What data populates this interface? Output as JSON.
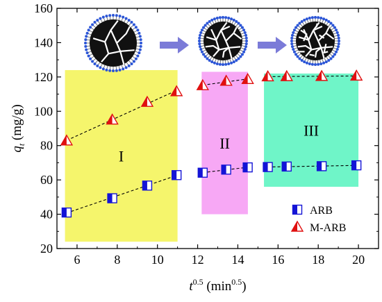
{
  "chart_data": {
    "type": "scatter",
    "title": "",
    "xlabel": {
      "base": "t",
      "sup": "0.5",
      "unit_open": " (min",
      "unit_sup": "0.5",
      "unit_close": ")"
    },
    "ylabel": {
      "base": "q",
      "sub": "t",
      "unit": " (mg/g)"
    },
    "xlim": [
      5,
      21
    ],
    "ylim": [
      20,
      160
    ],
    "xticks": [
      6,
      8,
      10,
      12,
      14,
      16,
      18,
      20
    ],
    "yticks": [
      20,
      40,
      60,
      80,
      100,
      120,
      140,
      160
    ],
    "grid": false,
    "legend_position": "bottom-right",
    "regions": [
      {
        "label": "I",
        "x_range": [
          5.4,
          11.0
        ],
        "y_range": [
          24,
          124
        ],
        "color": "#f5f56c"
      },
      {
        "label": "II",
        "x_range": [
          12.2,
          14.5
        ],
        "y_range": [
          40,
          123
        ],
        "color": "#f7a8f5"
      },
      {
        "label": "III",
        "x_range": [
          15.3,
          20.0
        ],
        "y_range": [
          56,
          122
        ],
        "color": "#6ff5c8"
      }
    ],
    "series": [
      {
        "name": "ARB",
        "marker": "half-filled-square",
        "color": "#1414d6",
        "x": [
          5.48,
          7.75,
          9.49,
          10.95,
          12.25,
          13.42,
          14.49,
          15.49,
          16.43,
          18.17,
          19.9
        ],
        "y": [
          41.0,
          49.3,
          56.7,
          62.8,
          64.2,
          66.0,
          67.3,
          67.5,
          67.8,
          68.0,
          68.5
        ],
        "fit_segments": [
          [
            0,
            3
          ],
          [
            4,
            6
          ],
          [
            7,
            10
          ]
        ]
      },
      {
        "name": "M-ARB",
        "marker": "half-filled-triangle",
        "color": "#e01010",
        "x": [
          5.48,
          7.75,
          9.49,
          10.95,
          12.25,
          13.42,
          14.49,
          15.49,
          16.43,
          18.17,
          19.9
        ],
        "y": [
          82.8,
          95.0,
          105.3,
          111.5,
          115.0,
          117.6,
          118.6,
          120.2,
          120.3,
          120.4,
          120.6
        ],
        "fit_segments": [
          [
            0,
            3
          ],
          [
            4,
            6
          ],
          [
            7,
            10
          ]
        ]
      }
    ],
    "illustrations": {
      "particle_fill": "#111111",
      "dot_color": "#2b55d6",
      "arrow_color": "#7b7bd8",
      "particles": [
        "intact-particle",
        "cracked-particle",
        "fragmented-particle"
      ]
    }
  }
}
